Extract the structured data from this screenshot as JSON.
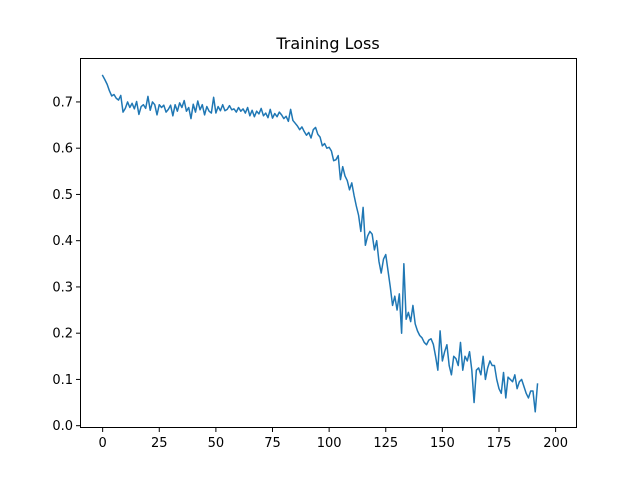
{
  "chart_data": {
    "type": "line",
    "title": "Training Loss",
    "xlabel": "",
    "ylabel": "",
    "xlim": [
      -10,
      209
    ],
    "ylim": [
      -0.005,
      0.795
    ],
    "xticks": [
      0,
      25,
      50,
      75,
      100,
      125,
      150,
      175,
      200
    ],
    "xtick_labels": [
      "0",
      "25",
      "50",
      "75",
      "100",
      "125",
      "150",
      "175",
      "200"
    ],
    "yticks": [
      0.0,
      0.1,
      0.2,
      0.3,
      0.4,
      0.5,
      0.6,
      0.7
    ],
    "ytick_labels": [
      "0.0",
      "0.1",
      "0.2",
      "0.3",
      "0.4",
      "0.5",
      "0.6",
      "0.7"
    ],
    "grid": false,
    "line_color": "#1f77b4",
    "series": [
      {
        "x_start": 0,
        "x_step": 1,
        "values": [
          0.757,
          0.748,
          0.738,
          0.724,
          0.713,
          0.716,
          0.708,
          0.704,
          0.714,
          0.678,
          0.686,
          0.7,
          0.688,
          0.697,
          0.685,
          0.701,
          0.673,
          0.69,
          0.694,
          0.686,
          0.712,
          0.682,
          0.7,
          0.694,
          0.672,
          0.694,
          0.688,
          0.693,
          0.678,
          0.684,
          0.693,
          0.67,
          0.694,
          0.68,
          0.698,
          0.688,
          0.703,
          0.68,
          0.688,
          0.664,
          0.695,
          0.678,
          0.702,
          0.683,
          0.694,
          0.672,
          0.69,
          0.68,
          0.676,
          0.71,
          0.676,
          0.69,
          0.681,
          0.694,
          0.681,
          0.684,
          0.692,
          0.683,
          0.685,
          0.678,
          0.688,
          0.68,
          0.685,
          0.676,
          0.688,
          0.67,
          0.682,
          0.668,
          0.68,
          0.674,
          0.686,
          0.67,
          0.676,
          0.666,
          0.684,
          0.665,
          0.675,
          0.668,
          0.678,
          0.672,
          0.664,
          0.669,
          0.658,
          0.684,
          0.66,
          0.654,
          0.648,
          0.64,
          0.646,
          0.636,
          0.628,
          0.634,
          0.622,
          0.64,
          0.645,
          0.63,
          0.624,
          0.605,
          0.61,
          0.6,
          0.602,
          0.594,
          0.573,
          0.575,
          0.584,
          0.532,
          0.56,
          0.54,
          0.53,
          0.51,
          0.525,
          0.498,
          0.475,
          0.455,
          0.42,
          0.472,
          0.39,
          0.41,
          0.42,
          0.414,
          0.38,
          0.4,
          0.355,
          0.33,
          0.36,
          0.37,
          0.335,
          0.3,
          0.26,
          0.28,
          0.25,
          0.285,
          0.2,
          0.35,
          0.23,
          0.245,
          0.225,
          0.26,
          0.22,
          0.205,
          0.195,
          0.19,
          0.18,
          0.175,
          0.185,
          0.188,
          0.176,
          0.15,
          0.12,
          0.205,
          0.14,
          0.16,
          0.175,
          0.13,
          0.11,
          0.15,
          0.145,
          0.13,
          0.18,
          0.12,
          0.15,
          0.14,
          0.16,
          0.12,
          0.05,
          0.12,
          0.125,
          0.11,
          0.15,
          0.1,
          0.125,
          0.14,
          0.13,
          0.13,
          0.1,
          0.08,
          0.07,
          0.115,
          0.06,
          0.105,
          0.1,
          0.095,
          0.11,
          0.08,
          0.095,
          0.1,
          0.085,
          0.07,
          0.06,
          0.075,
          0.075,
          0.03,
          0.09
        ]
      }
    ]
  }
}
